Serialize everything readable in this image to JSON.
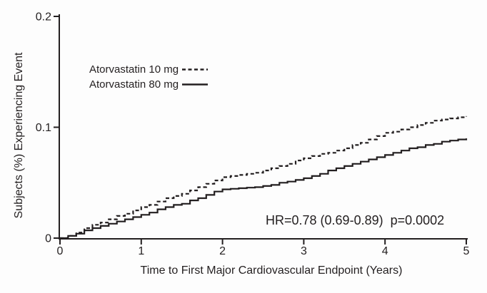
{
  "figure": {
    "background": "#fdfdfd",
    "ink_color": "#231f20"
  },
  "annotation": {
    "text": "HR=0.78 (0.69-0.89)  p=0.0002"
  },
  "chart_data": {
    "type": "line",
    "subtype": "kaplan-meier-cumulative-incidence",
    "title": "",
    "xlabel": "Time to First Major Cardiovascular Endpoint (Years)",
    "ylabel": "Subjects (%) Experiencing Event",
    "xlim": [
      0,
      5
    ],
    "ylim": [
      0,
      0.2
    ],
    "x_ticks": [
      0,
      1,
      2,
      3,
      4,
      5
    ],
    "x_tick_labels": [
      "0",
      "1",
      "2",
      "3",
      "4",
      "5"
    ],
    "y_ticks": [
      0,
      0.1,
      0.2
    ],
    "y_tick_labels": [
      "0",
      "0.1",
      "0.2"
    ],
    "grid": false,
    "legend_position": "upper-left-inside",
    "annotation": "HR=0.78 (0.69-0.89)  p=0.0002",
    "x": [
      0,
      0.1,
      0.2,
      0.3,
      0.4,
      0.5,
      0.6,
      0.7,
      0.8,
      0.9,
      1.0,
      1.1,
      1.2,
      1.3,
      1.4,
      1.5,
      1.6,
      1.7,
      1.8,
      1.9,
      2.0,
      2.1,
      2.2,
      2.3,
      2.4,
      2.5,
      2.6,
      2.7,
      2.8,
      2.9,
      3.0,
      3.1,
      3.2,
      3.3,
      3.4,
      3.5,
      3.6,
      3.7,
      3.8,
      3.9,
      4.0,
      4.1,
      4.2,
      4.3,
      4.4,
      4.5,
      4.6,
      4.7,
      4.8,
      4.9,
      5.0
    ],
    "series": [
      {
        "name": "Atorvastatin 10 mg",
        "style": "dashed",
        "values": [
          0,
          0.002,
          0.005,
          0.009,
          0.012,
          0.014,
          0.017,
          0.02,
          0.022,
          0.025,
          0.028,
          0.03,
          0.033,
          0.036,
          0.038,
          0.04,
          0.043,
          0.046,
          0.049,
          0.052,
          0.055,
          0.056,
          0.057,
          0.058,
          0.059,
          0.061,
          0.063,
          0.065,
          0.067,
          0.07,
          0.072,
          0.074,
          0.076,
          0.077,
          0.079,
          0.081,
          0.084,
          0.086,
          0.089,
          0.092,
          0.095,
          0.096,
          0.098,
          0.1,
          0.102,
          0.104,
          0.106,
          0.107,
          0.108,
          0.109,
          0.11
        ]
      },
      {
        "name": "Atorvastatin 80 mg",
        "style": "solid",
        "values": [
          0,
          0.002,
          0.004,
          0.007,
          0.009,
          0.011,
          0.013,
          0.015,
          0.017,
          0.019,
          0.021,
          0.023,
          0.026,
          0.028,
          0.03,
          0.031,
          0.034,
          0.036,
          0.039,
          0.042,
          0.044,
          0.0445,
          0.045,
          0.0455,
          0.046,
          0.047,
          0.048,
          0.05,
          0.051,
          0.0525,
          0.054,
          0.056,
          0.058,
          0.061,
          0.063,
          0.065,
          0.067,
          0.069,
          0.071,
          0.073,
          0.075,
          0.077,
          0.079,
          0.081,
          0.082,
          0.084,
          0.085,
          0.087,
          0.088,
          0.089,
          0.09
        ]
      }
    ]
  }
}
